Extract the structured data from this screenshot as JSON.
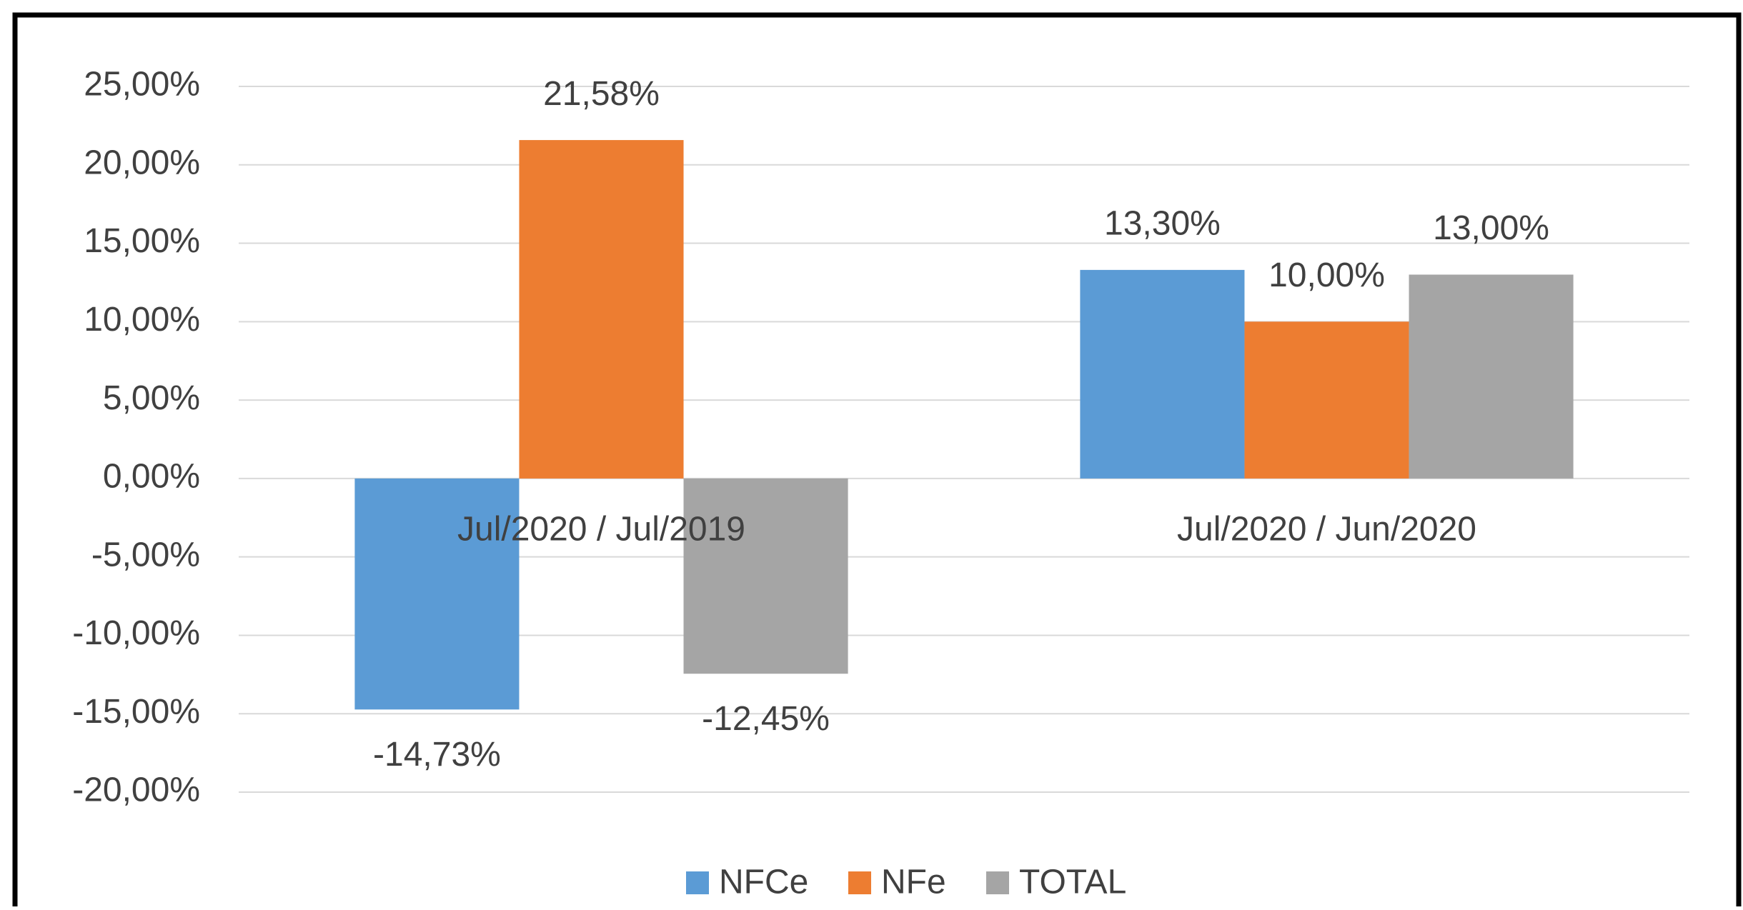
{
  "chart_data": {
    "type": "bar",
    "categories": [
      "Jul/2020 / Jul/2019",
      "Jul/2020 / Jun/2020"
    ],
    "series": [
      {
        "name": "NFCe",
        "color": "#5b9bd5",
        "values": [
          -14.73,
          13.3
        ],
        "value_labels": [
          "-14,73%",
          "13,30%"
        ]
      },
      {
        "name": "NFe",
        "color": "#ed7d31",
        "values": [
          21.58,
          10.0
        ],
        "value_labels": [
          "21,58%",
          "10,00%"
        ]
      },
      {
        "name": "TOTAL",
        "color": "#a5a5a5",
        "values": [
          -12.45,
          13.0
        ],
        "value_labels": [
          "-12,45%",
          "13,00%"
        ]
      }
    ],
    "ylim": [
      -20,
      25
    ],
    "yticks": [
      {
        "value": -20,
        "label": "-20,00%"
      },
      {
        "value": -15,
        "label": "-15,00%"
      },
      {
        "value": -10,
        "label": "-10,00%"
      },
      {
        "value": -5,
        "label": "-5,00%"
      },
      {
        "value": 0,
        "label": "0,00%"
      },
      {
        "value": 5,
        "label": "5,00%"
      },
      {
        "value": 10,
        "label": "10,00%"
      },
      {
        "value": 15,
        "label": "15,00%"
      },
      {
        "value": 20,
        "label": "20,00%"
      },
      {
        "value": 25,
        "label": "25,00%"
      }
    ],
    "grid": true,
    "legend": "bottom"
  }
}
